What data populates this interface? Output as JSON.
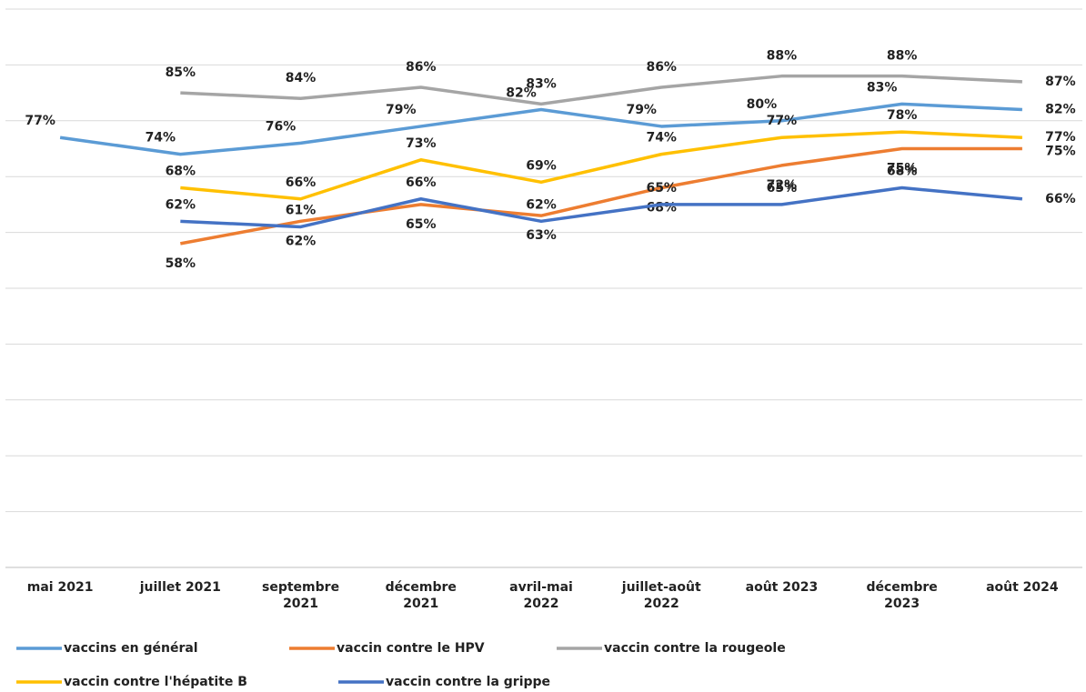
{
  "chart_data": {
    "type": "line",
    "categories": [
      "mai 2021",
      "juillet 2021",
      "septembre 2021",
      "décembre 2021",
      "avril-mai 2022",
      "juillet-août 2022",
      "août 2023",
      "décembre 2023",
      "août 2024"
    ],
    "ylim": [
      0,
      100
    ],
    "yticks": [
      0,
      10,
      20,
      30,
      40,
      50,
      60,
      70,
      80,
      90,
      100
    ],
    "grid": true,
    "series": [
      {
        "name": "vaccins en général",
        "color": "#5b9bd5",
        "values": [
          77,
          74,
          76,
          79,
          82,
          79,
          80,
          83,
          82
        ],
        "value_labels": [
          "77%",
          "74%",
          "76%",
          "79%",
          "82%",
          "79%",
          "80%",
          "83%",
          "82%"
        ]
      },
      {
        "name": "vaccin contre le HPV",
        "color": "#ed7d31",
        "values": [
          null,
          58,
          62,
          65,
          63,
          68,
          72,
          75,
          75
        ],
        "value_labels": [
          null,
          "58%",
          "62%",
          "65%",
          "63%",
          "68%",
          "72%",
          "75%",
          "75%"
        ]
      },
      {
        "name": "vaccin contre la rougeole",
        "color": "#a5a5a5",
        "values": [
          null,
          85,
          84,
          86,
          83,
          86,
          88,
          88,
          87
        ],
        "value_labels": [
          null,
          "85%",
          "84%",
          "86%",
          "83%",
          "86%",
          "88%",
          "88%",
          "87%"
        ]
      },
      {
        "name": "vaccin contre l'hépatite B",
        "color": "#ffc000",
        "values": [
          null,
          68,
          66,
          73,
          69,
          74,
          77,
          78,
          77
        ],
        "value_labels": [
          null,
          "68%",
          "66%",
          "73%",
          "69%",
          "74%",
          "77%",
          "78%",
          "77%"
        ]
      },
      {
        "name": "vaccin contre la grippe",
        "color": "#4472c4",
        "values": [
          null,
          62,
          61,
          66,
          62,
          65,
          65,
          68,
          66
        ],
        "value_labels": [
          null,
          "62%",
          "61%",
          "66%",
          "62%",
          "65%",
          "65%",
          "68%",
          "66%"
        ]
      }
    ]
  }
}
